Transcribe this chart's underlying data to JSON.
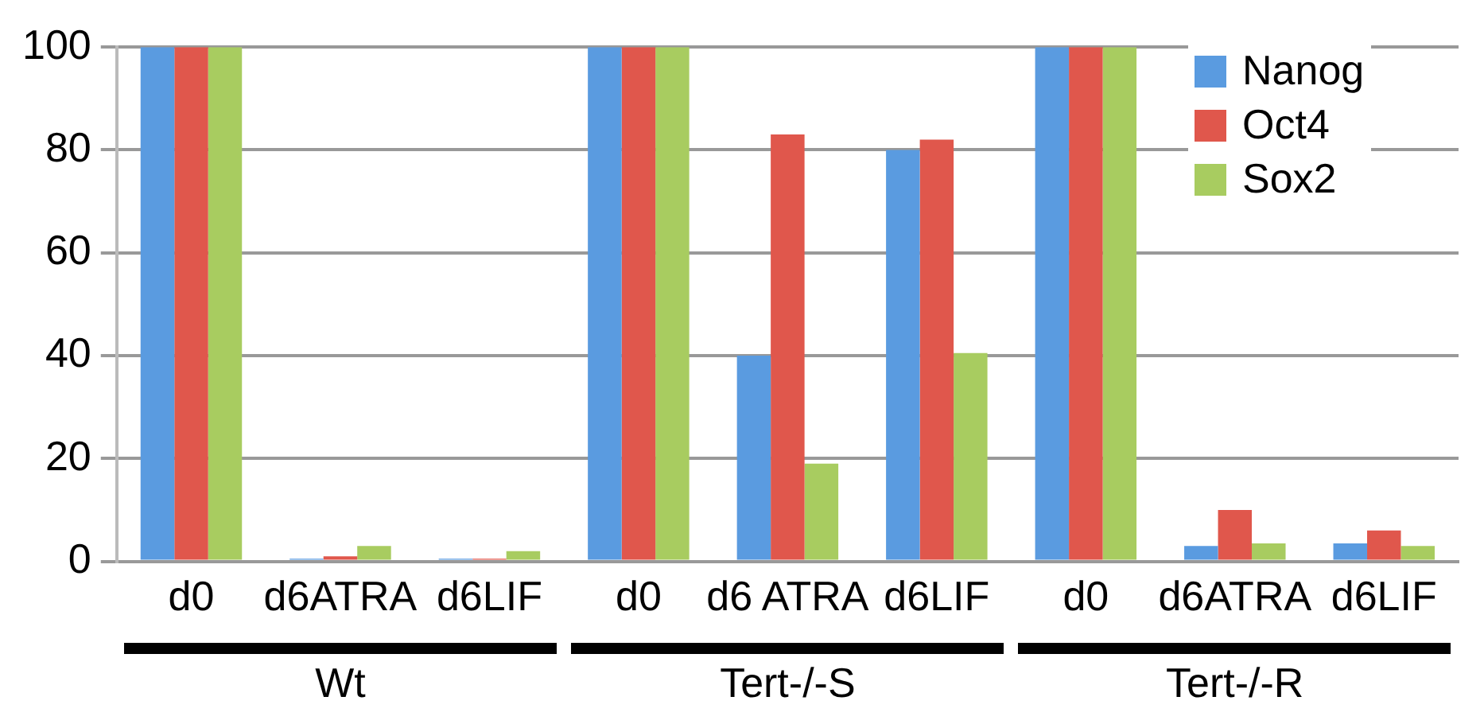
{
  "chart_data": {
    "type": "bar",
    "categories": [
      "d0",
      "d6ATRA",
      "d6LIF",
      "d0",
      "d6 ATRA",
      "d6LIF",
      "d0",
      "d6ATRA",
      "d6LIF"
    ],
    "series": [
      {
        "name": "Nanog",
        "color": "#5a9be0",
        "values": [
          100,
          0.5,
          0.5,
          100,
          40,
          80,
          100,
          3,
          3.5
        ]
      },
      {
        "name": "Oct4",
        "color": "#e0574c",
        "values": [
          100,
          1,
          0.5,
          100,
          83,
          82,
          100,
          10,
          6
        ]
      },
      {
        "name": "Sox2",
        "color": "#a8cc60",
        "values": [
          100,
          3,
          2,
          100,
          19,
          40.5,
          100,
          3.5,
          3
        ]
      }
    ],
    "ylim": [
      0,
      100
    ],
    "yticks": [
      0,
      20,
      40,
      60,
      80,
      100
    ],
    "grid": "y",
    "legend": "top right",
    "annotations": [
      "Wt",
      "Tert-/-S",
      "Tert-/-R"
    ]
  }
}
